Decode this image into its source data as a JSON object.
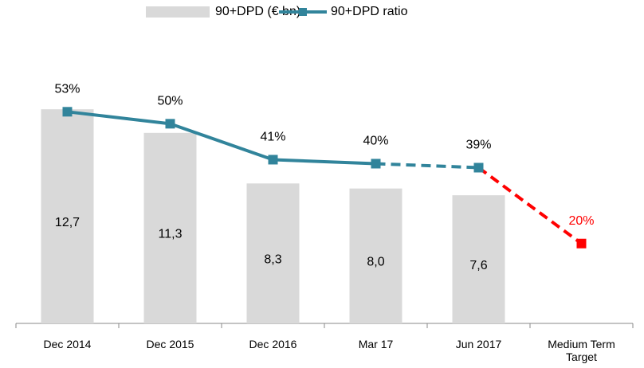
{
  "chart_data": {
    "type": "bar+line",
    "categories": [
      "Dec 2014",
      "Dec 2015",
      "Dec 2016",
      "Mar 17",
      "Jun 2017",
      "Medium Term Target"
    ],
    "series": [
      {
        "name": "90+DPD (€ bn)",
        "type": "bar",
        "color": "#d9d9d9",
        "values": [
          12.7,
          11.3,
          8.3,
          8.0,
          7.6,
          null
        ],
        "value_labels": [
          "12,7",
          "11,3",
          "8,3",
          "8,0",
          "7,6",
          null
        ]
      },
      {
        "name": "90+DPD ratio",
        "type": "line",
        "axis": "y2",
        "color": "#31849b",
        "values": [
          53,
          50,
          41,
          40,
          39,
          20
        ],
        "value_labels": [
          "53%",
          "50%",
          "41%",
          "40%",
          "39%",
          "20%"
        ],
        "point_colors": [
          "#31849b",
          "#31849b",
          "#31849b",
          "#31849b",
          "#31849b",
          "#ff0000"
        ],
        "segment_styles": [
          "solid",
          "solid",
          "solid",
          "dashed",
          "dashed"
        ]
      }
    ],
    "ylim": [
      0,
      18
    ],
    "y2lim": [
      0,
      76
    ],
    "legend": "top"
  }
}
